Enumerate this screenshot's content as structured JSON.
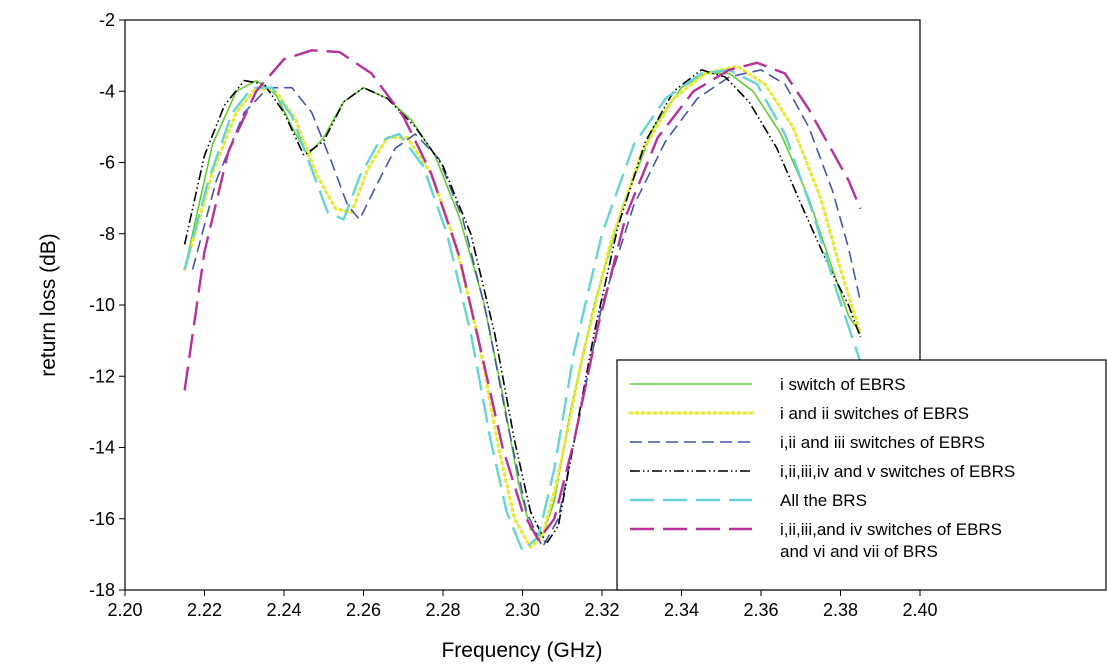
{
  "chart_data": {
    "type": "line",
    "title": "",
    "xlabel": "Frequency (GHz)",
    "ylabel": "return loss (dB)",
    "xlim": [
      2.2,
      2.4
    ],
    "ylim": [
      -18,
      -2
    ],
    "grid": false,
    "legend_position": "bottom-right",
    "x_ticks": [
      "2.20",
      "2.22",
      "2.24",
      "2.26",
      "2.28",
      "2.30",
      "2.32",
      "2.34",
      "2.36",
      "2.38",
      "2.40"
    ],
    "y_ticks": [
      "-2",
      "-4",
      "-6",
      "-8",
      "-10",
      "-12",
      "-14",
      "-16",
      "-18"
    ],
    "series": [
      {
        "name": "i switch of EBRS",
        "color": "#66cc33",
        "dash": "solid",
        "points": [
          [
            2.215,
            -9.0
          ],
          [
            2.222,
            -5.5
          ],
          [
            2.228,
            -4.0
          ],
          [
            2.233,
            -3.7
          ],
          [
            2.238,
            -4.1
          ],
          [
            2.242,
            -5.0
          ],
          [
            2.246,
            -5.8
          ],
          [
            2.25,
            -5.3
          ],
          [
            2.255,
            -4.3
          ],
          [
            2.26,
            -3.9
          ],
          [
            2.266,
            -4.2
          ],
          [
            2.272,
            -4.8
          ],
          [
            2.278,
            -5.8
          ],
          [
            2.284,
            -7.5
          ],
          [
            2.29,
            -9.8
          ],
          [
            2.295,
            -12.5
          ],
          [
            2.299,
            -15.0
          ],
          [
            2.302,
            -16.3
          ],
          [
            2.305,
            -16.5
          ],
          [
            2.308,
            -15.5
          ],
          [
            2.312,
            -13.0
          ],
          [
            2.318,
            -10.0
          ],
          [
            2.325,
            -7.3
          ],
          [
            2.333,
            -5.0
          ],
          [
            2.34,
            -3.9
          ],
          [
            2.346,
            -3.5
          ],
          [
            2.352,
            -3.5
          ],
          [
            2.358,
            -4.0
          ],
          [
            2.365,
            -5.2
          ],
          [
            2.372,
            -7.0
          ],
          [
            2.378,
            -9.0
          ],
          [
            2.382,
            -10.3
          ],
          [
            2.385,
            -10.8
          ]
        ]
      },
      {
        "name": "i and ii switches of EBRS",
        "color": "#e8e83a",
        "dash": "dotted",
        "points": [
          [
            2.215,
            -9.0
          ],
          [
            2.222,
            -6.3
          ],
          [
            2.228,
            -4.6
          ],
          [
            2.233,
            -3.9
          ],
          [
            2.238,
            -4.0
          ],
          [
            2.243,
            -4.8
          ],
          [
            2.248,
            -6.3
          ],
          [
            2.253,
            -7.3
          ],
          [
            2.257,
            -7.4
          ],
          [
            2.261,
            -6.2
          ],
          [
            2.266,
            -5.3
          ],
          [
            2.271,
            -5.3
          ],
          [
            2.277,
            -6.3
          ],
          [
            2.283,
            -8.2
          ],
          [
            2.289,
            -11.0
          ],
          [
            2.294,
            -14.0
          ],
          [
            2.298,
            -16.0
          ],
          [
            2.302,
            -16.8
          ],
          [
            2.305,
            -16.5
          ],
          [
            2.309,
            -14.8
          ],
          [
            2.315,
            -11.5
          ],
          [
            2.322,
            -8.3
          ],
          [
            2.33,
            -5.7
          ],
          [
            2.338,
            -4.2
          ],
          [
            2.346,
            -3.5
          ],
          [
            2.354,
            -3.3
          ],
          [
            2.361,
            -3.8
          ],
          [
            2.368,
            -5.0
          ],
          [
            2.375,
            -7.0
          ],
          [
            2.38,
            -9.0
          ],
          [
            2.385,
            -10.8
          ]
        ]
      },
      {
        "name": "i,ii and iii switches of EBRS",
        "color": "#4455aa",
        "dash": "dashed",
        "points": [
          [
            2.217,
            -9.0
          ],
          [
            2.223,
            -6.5
          ],
          [
            2.23,
            -4.6
          ],
          [
            2.236,
            -3.9
          ],
          [
            2.242,
            -3.9
          ],
          [
            2.247,
            -4.6
          ],
          [
            2.252,
            -6.0
          ],
          [
            2.256,
            -7.2
          ],
          [
            2.259,
            -7.6
          ],
          [
            2.263,
            -6.7
          ],
          [
            2.268,
            -5.6
          ],
          [
            2.273,
            -5.2
          ],
          [
            2.279,
            -5.9
          ],
          [
            2.285,
            -7.6
          ],
          [
            2.291,
            -10.3
          ],
          [
            2.296,
            -13.2
          ],
          [
            2.301,
            -15.8
          ],
          [
            2.305,
            -16.8
          ],
          [
            2.309,
            -16.0
          ],
          [
            2.314,
            -13.3
          ],
          [
            2.32,
            -10.0
          ],
          [
            2.328,
            -7.2
          ],
          [
            2.336,
            -5.4
          ],
          [
            2.344,
            -4.2
          ],
          [
            2.352,
            -3.6
          ],
          [
            2.36,
            -3.4
          ],
          [
            2.366,
            -3.8
          ],
          [
            2.372,
            -5.0
          ],
          [
            2.378,
            -6.8
          ],
          [
            2.382,
            -8.4
          ],
          [
            2.385,
            -9.9
          ]
        ]
      },
      {
        "name": "i,ii,iii,iv and v switches of EBRS",
        "color": "#000000",
        "dash": "dashdotdot",
        "points": [
          [
            2.215,
            -8.3
          ],
          [
            2.22,
            -5.8
          ],
          [
            2.225,
            -4.4
          ],
          [
            2.23,
            -3.7
          ],
          [
            2.235,
            -3.8
          ],
          [
            2.24,
            -4.6
          ],
          [
            2.245,
            -5.8
          ],
          [
            2.25,
            -5.4
          ],
          [
            2.255,
            -4.3
          ],
          [
            2.26,
            -3.9
          ],
          [
            2.266,
            -4.2
          ],
          [
            2.273,
            -5.0
          ],
          [
            2.28,
            -6.1
          ],
          [
            2.287,
            -8.0
          ],
          [
            2.293,
            -10.8
          ],
          [
            2.298,
            -13.8
          ],
          [
            2.302,
            -15.8
          ],
          [
            2.306,
            -16.7
          ],
          [
            2.309,
            -16.2
          ],
          [
            2.313,
            -13.8
          ],
          [
            2.318,
            -10.8
          ],
          [
            2.324,
            -7.8
          ],
          [
            2.331,
            -5.4
          ],
          [
            2.338,
            -4.0
          ],
          [
            2.345,
            -3.4
          ],
          [
            2.351,
            -3.6
          ],
          [
            2.357,
            -4.3
          ],
          [
            2.364,
            -5.6
          ],
          [
            2.371,
            -7.4
          ],
          [
            2.377,
            -8.9
          ],
          [
            2.382,
            -10.0
          ],
          [
            2.385,
            -10.9
          ]
        ]
      },
      {
        "name": "All the BRS",
        "color": "#66d4d4",
        "dash": "longdash",
        "points": [
          [
            2.215,
            -9.0
          ],
          [
            2.221,
            -6.5
          ],
          [
            2.227,
            -4.6
          ],
          [
            2.232,
            -3.9
          ],
          [
            2.237,
            -3.9
          ],
          [
            2.242,
            -4.7
          ],
          [
            2.247,
            -6.2
          ],
          [
            2.251,
            -7.4
          ],
          [
            2.255,
            -7.6
          ],
          [
            2.259,
            -6.4
          ],
          [
            2.264,
            -5.4
          ],
          [
            2.269,
            -5.2
          ],
          [
            2.275,
            -6.1
          ],
          [
            2.281,
            -8.0
          ],
          [
            2.287,
            -10.8
          ],
          [
            2.292,
            -13.8
          ],
          [
            2.296,
            -15.8
          ],
          [
            2.3,
            -16.9
          ],
          [
            2.304,
            -16.5
          ],
          [
            2.308,
            -14.6
          ],
          [
            2.313,
            -11.3
          ],
          [
            2.32,
            -8.0
          ],
          [
            2.328,
            -5.5
          ],
          [
            2.336,
            -4.2
          ],
          [
            2.345,
            -3.5
          ],
          [
            2.352,
            -3.4
          ],
          [
            2.359,
            -3.8
          ],
          [
            2.366,
            -5.2
          ],
          [
            2.373,
            -7.4
          ],
          [
            2.379,
            -9.6
          ],
          [
            2.385,
            -11.6
          ]
        ]
      },
      {
        "name": "i,ii,iii,and iv switches of EBRS and vi and vii of BRS",
        "color": "#b8309a",
        "dash": "longdash",
        "points": [
          [
            2.215,
            -12.4
          ],
          [
            2.22,
            -8.5
          ],
          [
            2.226,
            -5.7
          ],
          [
            2.233,
            -4.0
          ],
          [
            2.24,
            -3.1
          ],
          [
            2.247,
            -2.85
          ],
          [
            2.254,
            -2.9
          ],
          [
            2.262,
            -3.5
          ],
          [
            2.27,
            -4.7
          ],
          [
            2.277,
            -6.3
          ],
          [
            2.284,
            -8.6
          ],
          [
            2.29,
            -11.5
          ],
          [
            2.295,
            -14.0
          ],
          [
            2.3,
            -15.8
          ],
          [
            2.304,
            -16.6
          ],
          [
            2.308,
            -16.0
          ],
          [
            2.313,
            -13.8
          ],
          [
            2.319,
            -10.6
          ],
          [
            2.326,
            -7.5
          ],
          [
            2.334,
            -5.3
          ],
          [
            2.343,
            -4.0
          ],
          [
            2.352,
            -3.4
          ],
          [
            2.359,
            -3.2
          ],
          [
            2.366,
            -3.5
          ],
          [
            2.372,
            -4.5
          ],
          [
            2.378,
            -5.7
          ],
          [
            2.382,
            -6.5
          ],
          [
            2.385,
            -7.3
          ]
        ]
      }
    ],
    "legend": [
      {
        "lines": [
          "i switch of EBRS"
        ]
      },
      {
        "lines": [
          "i and ii switches of EBRS"
        ]
      },
      {
        "lines": [
          "i,ii and iii switches of EBRS"
        ]
      },
      {
        "lines": [
          "i,ii,iii,iv and v switches of EBRS"
        ]
      },
      {
        "lines": [
          "All the BRS"
        ]
      },
      {
        "lines": [
          "i,ii,iii,and iv switches of EBRS",
          "and vi and vii of BRS"
        ]
      }
    ]
  }
}
